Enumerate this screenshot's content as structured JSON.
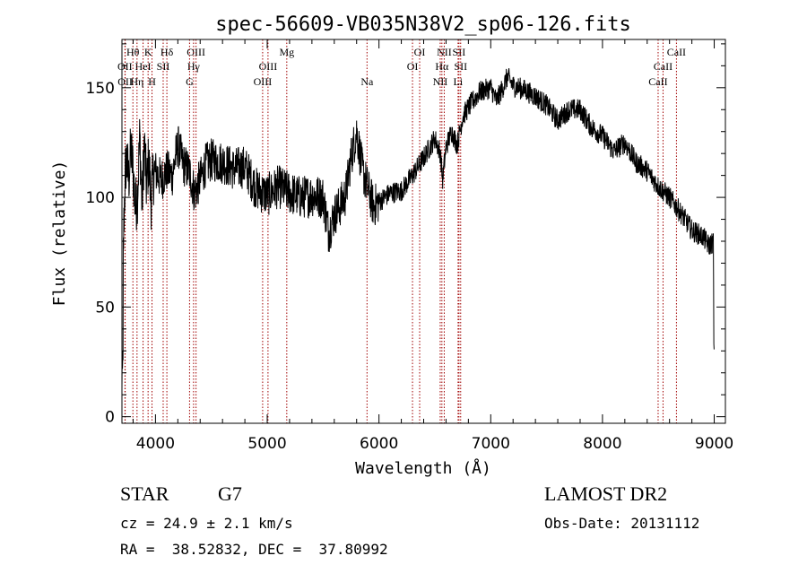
{
  "chart_data": {
    "type": "line",
    "title": "spec-56609-VB035N38V2_sp06-126.fits",
    "xlabel": "Wavelength (Å)",
    "ylabel": "Flux (relative)",
    "xlim": [
      3700,
      9100
    ],
    "ylim": [
      -3,
      172
    ],
    "xticks": [
      {
        "value": 4000,
        "label": "4000"
      },
      {
        "value": 5000,
        "label": "5000"
      },
      {
        "value": 6000,
        "label": "6000"
      },
      {
        "value": 7000,
        "label": "7000"
      },
      {
        "value": 8000,
        "label": "8000"
      },
      {
        "value": 9000,
        "label": "9000"
      }
    ],
    "yticks": [
      {
        "value": 0,
        "label": "0"
      },
      {
        "value": 50,
        "label": "50"
      },
      {
        "value": 100,
        "label": "100"
      },
      {
        "value": 150,
        "label": "150"
      }
    ],
    "grid": false,
    "line_color": "#000000",
    "marker_color": "#a00000",
    "series": [
      {
        "values_x": [
          3700,
          3710,
          3720,
          3730,
          3740,
          3760,
          3780,
          3800,
          3820,
          3840,
          3860,
          3880,
          3900,
          3920,
          3940,
          3960,
          3980,
          4000,
          4050,
          4100,
          4150,
          4200,
          4250,
          4300,
          4350,
          4400,
          4450,
          4500,
          4600,
          4700,
          4800,
          4900,
          5000,
          5100,
          5200,
          5300,
          5400,
          5500,
          5550,
          5600,
          5650,
          5700,
          5750,
          5800,
          5850,
          5900,
          5950,
          6000,
          6100,
          6200,
          6300,
          6400,
          6500,
          6550,
          6570,
          6600,
          6650,
          6700,
          6750,
          6800,
          6900,
          7000,
          7050,
          7100,
          7150,
          7200,
          7300,
          7400,
          7500,
          7600,
          7700,
          7800,
          7900,
          8000,
          8100,
          8200,
          8300,
          8400,
          8500,
          8600,
          8700,
          8800,
          8900,
          8950,
          9000
        ],
        "values_y": [
          20,
          70,
          95,
          110,
          118,
          108,
          122,
          112,
          95,
          102,
          128,
          96,
          125,
          104,
          118,
          98,
          110,
          112,
          108,
          112,
          110,
          124,
          115,
          112,
          102,
          108,
          115,
          117,
          116,
          113,
          114,
          104,
          101,
          105,
          102,
          100,
          101,
          100,
          84,
          92,
          96,
          101,
          118,
          130,
          113,
          104,
          96,
          98,
          102,
          103,
          110,
          118,
          127,
          120,
          108,
          123,
          130,
          124,
          137,
          141,
          148,
          150,
          144,
          149,
          155,
          151,
          149,
          146,
          142,
          135,
          140,
          140,
          132,
          128,
          121,
          125,
          116,
          112,
          105,
          100,
          93,
          85,
          82,
          78,
          80
        ]
      }
    ],
    "line_markers": [
      {
        "label": "Hθ",
        "x": 3798,
        "row": 1
      },
      {
        "label": "OII",
        "x": 3727,
        "row": 2
      },
      {
        "label": "OII",
        "x": 3729,
        "row": 3
      },
      {
        "label": "HeI",
        "x": 3889,
        "row": 2
      },
      {
        "label": "Hη",
        "x": 3835,
        "row": 3
      },
      {
        "label": "K",
        "x": 3934,
        "row": 1
      },
      {
        "label": "H",
        "x": 3969,
        "row": 3
      },
      {
        "label": "SII",
        "x": 4069,
        "row": 2
      },
      {
        "label": "Hδ",
        "x": 4102,
        "row": 1
      },
      {
        "label": "OIII",
        "x": 4363,
        "row": 1
      },
      {
        "label": "Hγ",
        "x": 4341,
        "row": 2
      },
      {
        "label": "G",
        "x": 4305,
        "row": 3
      },
      {
        "label": "Mg",
        "x": 5175,
        "row": 1
      },
      {
        "label": "OIII",
        "x": 5007,
        "row": 2
      },
      {
        "label": "OIII",
        "x": 4959,
        "row": 3
      },
      {
        "label": "Na",
        "x": 5893,
        "row": 3
      },
      {
        "label": "OI",
        "x": 6364,
        "row": 1
      },
      {
        "label": "OI",
        "x": 6300,
        "row": 2
      },
      {
        "label": "NII",
        "x": 6584,
        "row": 1
      },
      {
        "label": "Hα",
        "x": 6563,
        "row": 2
      },
      {
        "label": "NII",
        "x": 6548,
        "row": 3
      },
      {
        "label": "SII",
        "x": 6716,
        "row": 1
      },
      {
        "label": "SII",
        "x": 6731,
        "row": 2
      },
      {
        "label": "Li",
        "x": 6708,
        "row": 3
      },
      {
        "label": "CaII",
        "x": 8662,
        "row": 1
      },
      {
        "label": "CaII",
        "x": 8542,
        "row": 2
      },
      {
        "label": "CaII",
        "x": 8498,
        "row": 3
      }
    ]
  },
  "info": {
    "object_class": "STAR",
    "subclass": "G7",
    "cz": "cz = 24.9 ± 2.1 km/s",
    "coords": "RA =  38.52832, DEC =  37.80992",
    "survey": "LAMOST DR2",
    "obs_date": "Obs-Date: 20131112"
  }
}
